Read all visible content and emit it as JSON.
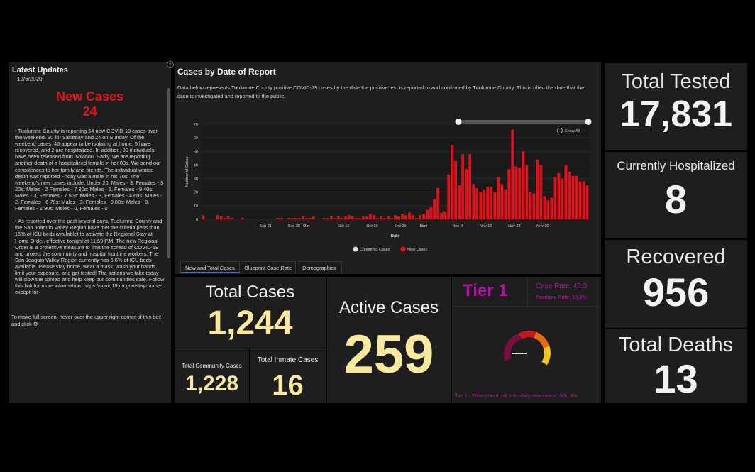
{
  "updates": {
    "header": "Latest Updates",
    "date": "12/6/2020",
    "headline_line1": "New Cases",
    "headline_line2": "24",
    "paragraph1": "• Tuolumne County is reporting 54 new COVID-19 cases over the weekend. 30 for Saturday and 24 on Sunday. Of the weekend cases, 46 appear to be isolating at home, 5 have recovered, and 2 are hospitalized. In addition, 30 individuals have been released from isolation. Sadly, we are reporting another death of a hospitalized female in her 80s. We send our condolences to her family and friends. The individual whose death was reported Friday was a male in his 70s. The weekend's new cases include: Under 20: Males - 3, Females - 3 20s: Males - 2 Females - 7 30s: Males - 1, Females - 9 40s: Males - 3, Females - 7 50s: Males - 3, Females - 4 60s: Males - 2, Females - 6 70s: Males - 3, Females - 0 80s: Males - 0, Females - 1 90s: Males - 0, Females - 0",
    "paragraph2": "• As reported over the past several days, Tuolumne County and the San Joaquin Valley Region have met the criteria (less than 15% of ICU beds available) to activate the Regional Stay at Home Order, effective tonight at 11:59 P.M. The new Regional Order is a protective measure to limit the spread of COVID-19 and protect the community and hospital frontline workers. The San Joaquin Valley Region currently has 6.6% of ICU beds available. Please stay home, wear a mask, wash your hands, limit your exposure, and get tested! The actions we take today will slow the spread and help keep our communities safe. Follow this link for more information: https://covid19.ca.gov/stay-home-except-for-",
    "footer": "To make full screen, hover over the upper right corner of this box and click"
  },
  "chart_panel": {
    "title": "Cases by Date of Report",
    "description": "Data below represents Tuolumne County positive COVID-19 cases by the date the positive test is reported to and confirmed by Tuolumne County. This is often the date that the case is investigated and reported to the public.",
    "show_all": "Show All"
  },
  "chart_data": {
    "type": "bar",
    "ylabel": "Number of Cases",
    "xlabel": "Date",
    "ylim": [
      0,
      70
    ],
    "yticks": [
      0,
      10,
      20,
      30,
      40,
      50,
      60,
      70
    ],
    "xtick_labels": [
      "Sep 21",
      "Sep 28",
      "Oct",
      "Oct 12",
      "Oct 19",
      "Oct 26",
      "Nov",
      "Nov 9",
      "Nov 16",
      "Nov 23",
      "Nov 30"
    ],
    "legend": [
      "Confirmed Cases",
      "New Cases"
    ],
    "legend_position": "bottom",
    "series_color": "#e3101a",
    "values": [
      3,
      0,
      0,
      0,
      3,
      2,
      1,
      2,
      1,
      0,
      0,
      1,
      0,
      0,
      0,
      0,
      0,
      0,
      0,
      0,
      0,
      1,
      1,
      0,
      1,
      1,
      1,
      1,
      2,
      1,
      1,
      2,
      0,
      0,
      1,
      1,
      2,
      1,
      2,
      1,
      2,
      3,
      2,
      1,
      1,
      2,
      2,
      4,
      3,
      1,
      2,
      1,
      2,
      1,
      3,
      2,
      4,
      3,
      5,
      3,
      1,
      3,
      4,
      7,
      9,
      15,
      23,
      5,
      6,
      33,
      55,
      43,
      25,
      48,
      37,
      48,
      26,
      23,
      20,
      22,
      24,
      24,
      20,
      31,
      26,
      22,
      37,
      66,
      39,
      38,
      50,
      40,
      20,
      19,
      44,
      40,
      17,
      14,
      16,
      31,
      34,
      30,
      40,
      35,
      32,
      32,
      28,
      28,
      25
    ]
  },
  "tabs": [
    {
      "label": "New and Total Cases",
      "active": true
    },
    {
      "label": "Blueprint Case Rate",
      "active": false
    },
    {
      "label": "Demographics",
      "active": false
    }
  ],
  "totals": {
    "total_cases_label": "Total Cases",
    "total_cases_value": "1,244",
    "community_label": "Total Community Cases",
    "community_value": "1,228",
    "inmate_label": "Total Inmate Cases",
    "inmate_value": "16",
    "active_label": "Active Cases",
    "active_value": "259"
  },
  "tier": {
    "title": "Tier 1",
    "case_rate": "Case Rate: 48.3",
    "positivity_rate": "Positivity Rate: 10.8%",
    "note": "Tier 1 - Widespread risk = 8+ daily new cases/100k; 8%",
    "gauge_value": 0.05
  },
  "right": {
    "tested_label": "Total Tested",
    "tested_value": "17,831",
    "hospitalized_label": "Currently Hospitalized",
    "hospitalized_value": "8",
    "recovered_label": "Recovered",
    "recovered_value": "956",
    "deaths_label": "Total Deaths",
    "deaths_value": "13"
  }
}
